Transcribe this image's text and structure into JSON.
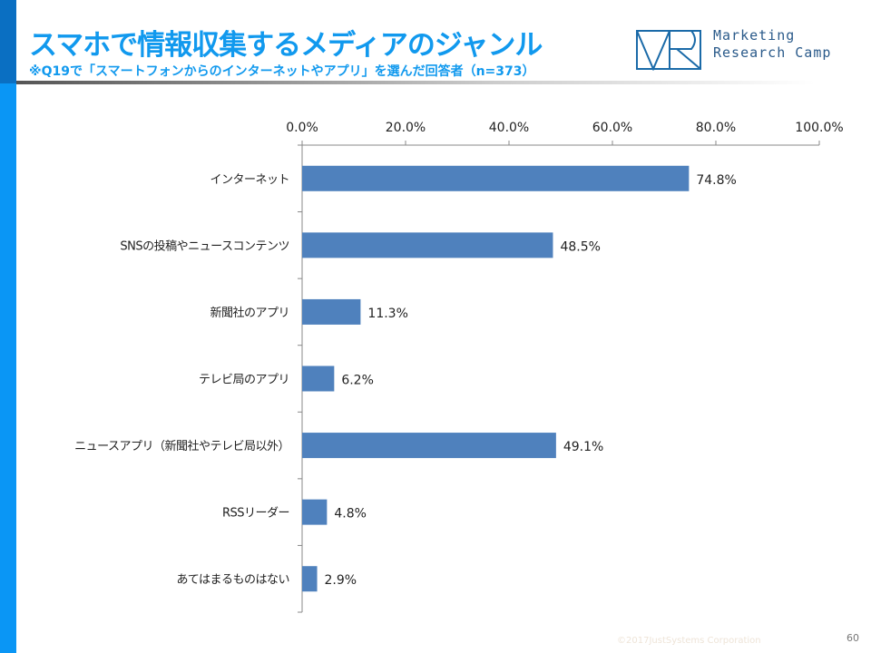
{
  "header": {
    "title": "スマホで情報収集するメディアのジャンル",
    "subtitle": "※Q19で「スマートフォンからのインターネットやアプリ」を選んだ回答者（n=373）",
    "logo_text": [
      "Marketing",
      "Research Camp"
    ]
  },
  "footer": {
    "copyright": "©2017JustSystems Corporation",
    "page": "60"
  },
  "colors": {
    "bar": "#4f81bd",
    "accent": "#1199ee"
  },
  "chart_data": {
    "type": "bar",
    "orientation": "horizontal",
    "categories": [
      "インターネット",
      "SNSの投稿やニュースコンテンツ",
      "新聞社のアプリ",
      "テレビ局のアプリ",
      "ニュースアプリ（新聞社やテレビ局以外）",
      "RSSリーダー",
      "あてはまるものはない"
    ],
    "values": [
      74.8,
      48.5,
      11.3,
      6.2,
      49.1,
      4.8,
      2.9
    ],
    "data_labels": [
      "74.8%",
      "48.5%",
      "11.3%",
      "6.2%",
      "49.1%",
      "4.8%",
      "2.9%"
    ],
    "xlim": [
      0,
      100
    ],
    "x_ticks": [
      "0.0%",
      "20.0%",
      "40.0%",
      "60.0%",
      "80.0%",
      "100.0%"
    ],
    "axis_position": "top",
    "grid": false
  }
}
